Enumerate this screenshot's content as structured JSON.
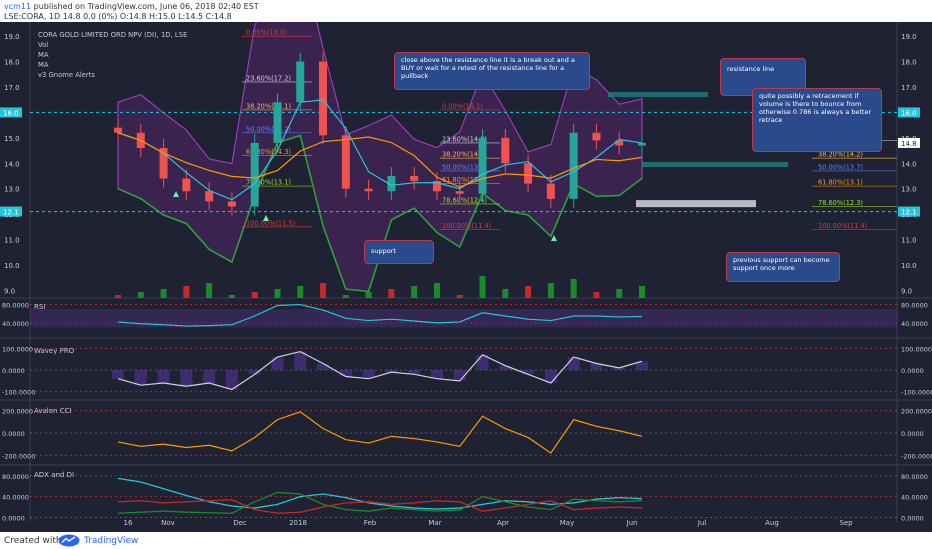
{
  "header": {
    "author": "vcm11",
    "published": " published on TradingView.com, June 06, 2018 02:40 EST",
    "ohlc": "LSE:CORA, 1D  14.8 0.0 (0%)  O:14.8 H:15.0 L:14.5 C:14.8"
  },
  "footer": {
    "created_with": "Created with",
    "brand": "TradingView"
  },
  "legend": {
    "title": "CORA GOLD LIMITED ORD NPV (DI), 1D, LSE",
    "items": [
      "Vol",
      "MA",
      "MA",
      "v3 Gnome Alerts"
    ]
  },
  "notes": {
    "breakout": "close above the resistance line it is a break out and a BUY or wait for a retest of the resistance line for a pullback",
    "resistance": "resistance line",
    "retracement": "quite possibly a retracement if volume is there to bounce from otherwise 0.786 is always a better retrace",
    "support": "support",
    "prev_support": "previous support can become support once more"
  },
  "chart_data": [
    {
      "type": "line",
      "name": "price",
      "price_axis": {
        "ticks": [
          "19.0",
          "18.0",
          "17.0",
          "16.0",
          "15.0",
          "14.0",
          "13.0",
          "12.0",
          "11.0",
          "10.0",
          "9.0"
        ],
        "ylim": [
          8.7,
          19.4
        ]
      },
      "markers": {
        "left": [
          "16.0",
          "12.1"
        ],
        "right": [
          "16.0",
          "14.8",
          "12.1"
        ]
      },
      "time_axis": [
        "16",
        "Nov",
        "Dec",
        "2018",
        "Feb",
        "Mar",
        "Apr",
        "May",
        "Jun",
        "Jul",
        "Aug",
        "Sep"
      ],
      "resistance": 16.0,
      "support": 12.1,
      "x": [
        "Oct 16",
        "Nov 1",
        "Nov 20",
        "Dec 5",
        "Dec 20",
        "Jan 2",
        "Jan 10",
        "Jan 18",
        "Jan 25",
        "Feb 1",
        "Feb 10",
        "Feb 20",
        "Mar 1",
        "Mar 10",
        "Mar 20",
        "Mar 28",
        "Apr 5",
        "Apr 15",
        "Apr 25",
        "May 2",
        "May 12",
        "May 22",
        "Jun 1",
        "Jun 5"
      ],
      "close": [
        15.2,
        14.6,
        13.4,
        12.9,
        12.5,
        12.3,
        14.8,
        16.4,
        18.0,
        15.1,
        13.0,
        12.9,
        13.5,
        13.3,
        12.9,
        12.8,
        15.0,
        14.0,
        13.2,
        12.6,
        15.2,
        14.9,
        14.7,
        14.8
      ],
      "fib_left": [
        {
          "label": "0.00%(19.0)",
          "value": 19.0
        },
        {
          "label": "23.60%(17.2)",
          "value": 17.2
        },
        {
          "label": "38.20%(16.1)",
          "value": 16.1
        },
        {
          "label": "50.00%(15.2)",
          "value": 15.2
        },
        {
          "label": "61.80%(14.3)",
          "value": 14.3
        },
        {
          "label": "78.60%(13.1)",
          "value": 13.1
        },
        {
          "label": "100.00%(11.5)",
          "value": 11.5
        }
      ],
      "fib_mid": [
        {
          "label": "0.00%(16.1)",
          "value": 16.1
        },
        {
          "label": "23.60%(14.8)",
          "value": 14.8
        },
        {
          "label": "38.20%(14.2)",
          "value": 14.2
        },
        {
          "label": "50.00%(13.7)",
          "value": 13.7
        },
        {
          "label": "61.80%(13.2)",
          "value": 13.2
        },
        {
          "label": "78.60%(12.4)",
          "value": 12.4
        },
        {
          "label": "100.00%(11.4)",
          "value": 11.4
        }
      ],
      "fib_right": [
        {
          "label": "23.60%(14.9)",
          "value": 14.9
        },
        {
          "label": "38.20%(14.2)",
          "value": 14.2
        },
        {
          "label": "50.00%(13.7)",
          "value": 13.7
        },
        {
          "label": "61.80%(13.1)",
          "value": 13.1
        },
        {
          "label": "78.60%(12.3)",
          "value": 12.3
        },
        {
          "label": "100.00%(11.4)",
          "value": 11.4
        }
      ],
      "fib_colors": [
        "#e53935",
        "#cfd2dc",
        "#ffb74d",
        "#5c8bff",
        "#ff9800",
        "#9be020",
        "#e53935"
      ]
    },
    {
      "type": "line",
      "name": "RSI",
      "label": "RSI",
      "ticks": [
        "80.0000",
        "40.0000"
      ],
      "ylim": [
        20,
        90
      ],
      "bands": [
        70,
        30
      ],
      "values": [
        42,
        38,
        36,
        33,
        34,
        36,
        55,
        78,
        80,
        68,
        50,
        45,
        48,
        44,
        40,
        42,
        62,
        55,
        48,
        45,
        55,
        55,
        53,
        54
      ]
    },
    {
      "type": "line",
      "name": "Wavey PRO",
      "label": "Wavey PRO",
      "ticks": [
        "100.0000",
        "0.0000",
        "-100.0000"
      ],
      "ylim": [
        -120,
        120
      ],
      "values": [
        -40,
        -70,
        -60,
        -75,
        -60,
        -90,
        -20,
        60,
        85,
        30,
        -30,
        -40,
        -10,
        -20,
        -40,
        -50,
        70,
        20,
        -20,
        -60,
        60,
        30,
        10,
        40
      ]
    },
    {
      "type": "line",
      "name": "Avalon CCI",
      "label": "Avalon CCI",
      "ticks": [
        "200.0000",
        "0.0000",
        "-200.0000"
      ],
      "ylim": [
        -260,
        260
      ],
      "values": [
        -80,
        -120,
        -100,
        -130,
        -110,
        -160,
        -40,
        120,
        190,
        40,
        -60,
        -90,
        -30,
        -50,
        -80,
        -120,
        150,
        40,
        -40,
        -180,
        120,
        60,
        20,
        -30
      ]
    },
    {
      "type": "line",
      "name": "ADX and DI",
      "label": "ADX and DI",
      "ticks": [
        "80.0000",
        "40.0000",
        "0.0000"
      ],
      "ylim": [
        -5,
        95
      ],
      "series": [
        {
          "values": [
            75,
            68,
            55,
            42,
            30,
            22,
            18,
            25,
            40,
            45,
            38,
            28,
            22,
            18,
            16,
            18,
            25,
            32,
            30,
            25,
            28,
            35,
            38,
            36
          ]
        },
        {
          "values": [
            8,
            10,
            12,
            10,
            9,
            8,
            30,
            48,
            45,
            25,
            15,
            12,
            18,
            15,
            12,
            14,
            40,
            30,
            20,
            15,
            35,
            32,
            30,
            32
          ]
        },
        {
          "values": [
            30,
            32,
            28,
            30,
            32,
            34,
            15,
            8,
            10,
            20,
            28,
            30,
            25,
            28,
            32,
            30,
            12,
            18,
            25,
            32,
            15,
            18,
            20,
            18
          ]
        }
      ],
      "colors": [
        "#26c6da",
        "#1b8a2a",
        "#c62828"
      ]
    }
  ],
  "colors": {
    "bg": "#1f2233",
    "up": "#26a69a",
    "down": "#ef5350",
    "bands": "#9c27b0",
    "ma1": "#26c6da",
    "ma2": "#ff9800"
  }
}
